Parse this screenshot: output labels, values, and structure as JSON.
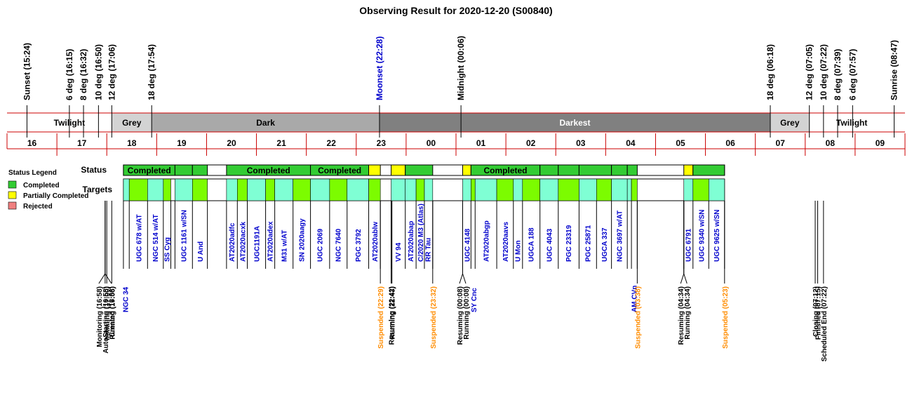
{
  "chart_data": {
    "type": "timeline",
    "title": "Observing Result for 2020-12-20 (S00840)",
    "time_range": [
      "15:00",
      "09:00"
    ],
    "sun_events": [
      {
        "label": "Sunset (15:24)",
        "t": "15:24",
        "color": "#000000"
      },
      {
        "label": "6 deg (16:15)",
        "t": "16:15",
        "color": "#000000"
      },
      {
        "label": "8 deg (16:32)",
        "t": "16:32",
        "color": "#000000"
      },
      {
        "label": "10 deg (16:50)",
        "t": "16:50",
        "color": "#000000"
      },
      {
        "label": "12 deg (17:06)",
        "t": "17:06",
        "color": "#000000"
      },
      {
        "label": "18 deg (17:54)",
        "t": "17:54",
        "color": "#000000"
      },
      {
        "label": "Moonset (22:28)",
        "t": "22:28",
        "color": "#0000cc"
      },
      {
        "label": "Midnight (00:06)",
        "t": "00:06",
        "color": "#000000"
      },
      {
        "label": "18 deg (06:18)",
        "t": "06:18",
        "color": "#000000"
      },
      {
        "label": "12 deg (07:05)",
        "t": "07:05",
        "color": "#000000"
      },
      {
        "label": "10 deg (07:22)",
        "t": "07:22",
        "color": "#000000"
      },
      {
        "label": "8 deg (07:39)",
        "t": "07:39",
        "color": "#000000"
      },
      {
        "label": "6 deg (07:57)",
        "t": "07:57",
        "color": "#000000"
      },
      {
        "label": "Sunrise (08:47)",
        "t": "08:47",
        "color": "#000000"
      }
    ],
    "periods": [
      {
        "label": "Twilight",
        "start": "15:24",
        "end": "17:06",
        "fill": "#ffffff",
        "text": "#000000"
      },
      {
        "label": "Grey",
        "start": "17:06",
        "end": "17:54",
        "fill": "#d3d3d3",
        "text": "#000000"
      },
      {
        "label": "Dark",
        "start": "17:54",
        "end": "22:28",
        "fill": "#a9a9a9",
        "text": "#000000"
      },
      {
        "label": "Darkest",
        "start": "22:28",
        "end": "06:18",
        "fill": "#808080",
        "text": "#ffffff"
      },
      {
        "label": "Grey",
        "start": "06:18",
        "end": "07:05",
        "fill": "#d3d3d3",
        "text": "#000000"
      },
      {
        "label": "Twilight",
        "start": "07:05",
        "end": "08:47",
        "fill": "#ffffff",
        "text": "#000000"
      }
    ],
    "hour_labels": [
      "16",
      "17",
      "18",
      "19",
      "20",
      "21",
      "22",
      "23",
      "00",
      "01",
      "02",
      "03",
      "04",
      "05",
      "06",
      "07",
      "08",
      "09"
    ],
    "row_labels": {
      "status": "Status",
      "targets": "Targets"
    },
    "legend": {
      "title": "Status Legend",
      "items": [
        {
          "label": "Completed",
          "color": "#33cc33"
        },
        {
          "label": "Partially Completed",
          "color": "#ffff00"
        },
        {
          "label": "Rejected",
          "color": "#f08080"
        }
      ]
    },
    "status_bars": [
      {
        "start": "17:20",
        "end": "18:22",
        "status": "Completed",
        "label": "Completed"
      },
      {
        "start": "18:22",
        "end": "18:43",
        "status": "Completed",
        "label": ""
      },
      {
        "start": "18:43",
        "end": "19:01",
        "status": "Completed",
        "label": ""
      },
      {
        "start": "19:24",
        "end": "21:05",
        "status": "Completed",
        "label": "Completed"
      },
      {
        "start": "21:05",
        "end": "22:15",
        "status": "Completed",
        "label": "Completed"
      },
      {
        "start": "22:15",
        "end": "22:29",
        "status": "Partially Completed",
        "label": ""
      },
      {
        "start": "22:42",
        "end": "22:59",
        "status": "Partially Completed",
        "label": ""
      },
      {
        "start": "22:59",
        "end": "23:32",
        "status": "Completed",
        "label": ""
      },
      {
        "start": "00:08",
        "end": "00:18",
        "status": "Partially Completed",
        "label": ""
      },
      {
        "start": "00:18",
        "end": "01:41",
        "status": "Completed",
        "label": "Completed"
      },
      {
        "start": "01:41",
        "end": "02:03",
        "status": "Completed",
        "label": ""
      },
      {
        "start": "02:03",
        "end": "02:28",
        "status": "Completed",
        "label": ""
      },
      {
        "start": "02:28",
        "end": "03:07",
        "status": "Completed",
        "label": ""
      },
      {
        "start": "03:07",
        "end": "03:26",
        "status": "Completed",
        "label": ""
      },
      {
        "start": "03:26",
        "end": "03:38",
        "status": "Completed",
        "label": ""
      },
      {
        "start": "04:34",
        "end": "04:45",
        "status": "Partially Completed",
        "label": ""
      },
      {
        "start": "04:45",
        "end": "05:23",
        "status": "Completed",
        "label": ""
      }
    ],
    "target_bars": [
      {
        "start": "17:20",
        "end": "17:27",
        "fill": "#7fffd4"
      },
      {
        "start": "17:27",
        "end": "17:49",
        "fill": "#7cfc00"
      },
      {
        "start": "17:49",
        "end": "18:08",
        "fill": "#7fffd4"
      },
      {
        "start": "18:08",
        "end": "18:17",
        "fill": "#7cfc00"
      },
      {
        "start": "18:22",
        "end": "18:43",
        "fill": "#7fffd4"
      },
      {
        "start": "18:43",
        "end": "19:01",
        "fill": "#7cfc00"
      },
      {
        "start": "19:24",
        "end": "19:37",
        "fill": "#7fffd4"
      },
      {
        "start": "19:37",
        "end": "19:49",
        "fill": "#7cfc00"
      },
      {
        "start": "19:49",
        "end": "20:11",
        "fill": "#7fffd4"
      },
      {
        "start": "20:11",
        "end": "20:22",
        "fill": "#7cfc00"
      },
      {
        "start": "20:22",
        "end": "20:44",
        "fill": "#7fffd4"
      },
      {
        "start": "20:44",
        "end": "21:05",
        "fill": "#7cfc00"
      },
      {
        "start": "21:05",
        "end": "21:28",
        "fill": "#7fffd4"
      },
      {
        "start": "21:28",
        "end": "21:49",
        "fill": "#7cfc00"
      },
      {
        "start": "21:49",
        "end": "22:15",
        "fill": "#7fffd4"
      },
      {
        "start": "22:15",
        "end": "22:29",
        "fill": "#7cfc00"
      },
      {
        "start": "22:42",
        "end": "22:59",
        "fill": "#7fffd4"
      },
      {
        "start": "22:59",
        "end": "23:12",
        "fill": "#7fffd4"
      },
      {
        "start": "23:12",
        "end": "23:22",
        "fill": "#7cfc00"
      },
      {
        "start": "23:22",
        "end": "23:32",
        "fill": "#7fffd4"
      },
      {
        "start": "00:08",
        "end": "00:18",
        "fill": "#7fffd4"
      },
      {
        "start": "00:18",
        "end": "00:23",
        "fill": "#7cfc00"
      },
      {
        "start": "00:23",
        "end": "00:49",
        "fill": "#7fffd4"
      },
      {
        "start": "00:49",
        "end": "01:09",
        "fill": "#7cfc00"
      },
      {
        "start": "01:09",
        "end": "01:20",
        "fill": "#7fffd4"
      },
      {
        "start": "01:20",
        "end": "01:41",
        "fill": "#7cfc00"
      },
      {
        "start": "01:41",
        "end": "02:03",
        "fill": "#7fffd4"
      },
      {
        "start": "02:03",
        "end": "02:28",
        "fill": "#7cfc00"
      },
      {
        "start": "02:28",
        "end": "02:49",
        "fill": "#7fffd4"
      },
      {
        "start": "02:49",
        "end": "03:07",
        "fill": "#7cfc00"
      },
      {
        "start": "03:07",
        "end": "03:26",
        "fill": "#7fffd4"
      },
      {
        "start": "03:26",
        "end": "03:31",
        "fill": "#7fffd4"
      },
      {
        "start": "03:31",
        "end": "03:38",
        "fill": "#7cfc00"
      },
      {
        "start": "04:34",
        "end": "04:45",
        "fill": "#7fffd4"
      },
      {
        "start": "04:45",
        "end": "05:04",
        "fill": "#7cfc00"
      },
      {
        "start": "05:04",
        "end": "05:23",
        "fill": "#7fffd4"
      }
    ],
    "target_labels": [
      {
        "label": "UGC 678 w/AT",
        "t": "17:38"
      },
      {
        "label": "NGC 514 w/AT",
        "t": "17:58"
      },
      {
        "label": "SS Cyg",
        "t": "18:12"
      },
      {
        "label": "UGC 1161 w/SN",
        "t": "18:32"
      },
      {
        "label": "U And",
        "t": "18:52"
      },
      {
        "label": "AT2020adfc",
        "t": "19:30"
      },
      {
        "label": "AT2020acxk",
        "t": "19:43"
      },
      {
        "label": "UGC1191A",
        "t": "20:00"
      },
      {
        "label": "AT2020adex",
        "t": "20:16"
      },
      {
        "label": "M31 w/AT",
        "t": "20:33"
      },
      {
        "label": "SN 2020aagy",
        "t": "20:54"
      },
      {
        "label": "UGC 2069",
        "t": "21:16"
      },
      {
        "label": "NGC 7640",
        "t": "21:38"
      },
      {
        "label": "PGC 3792",
        "t": "22:02"
      },
      {
        "label": "AT2020ablw",
        "t": "22:22"
      },
      {
        "label": "VV 94",
        "t": "22:50"
      },
      {
        "label": "AT2020abap",
        "t": "23:05"
      },
      {
        "label": "C/2020 M3 (Atlas)",
        "t": "23:17"
      },
      {
        "label": "RR Tau",
        "t": "23:26"
      },
      {
        "label": "UGC 4148",
        "t": "00:13"
      },
      {
        "label": "AT2020abgp",
        "t": "00:36"
      },
      {
        "label": "AT2020aavs",
        "t": "00:59"
      },
      {
        "label": "U Mon",
        "t": "01:14"
      },
      {
        "label": "UGCA 188",
        "t": "01:30"
      },
      {
        "label": "UGC 4043",
        "t": "01:52"
      },
      {
        "label": "PGC 23319",
        "t": "02:15"
      },
      {
        "label": "PGC 25871",
        "t": "02:38"
      },
      {
        "label": "UGCA 337",
        "t": "02:58"
      },
      {
        "label": "NGC 3697 w/AT",
        "t": "03:16"
      },
      {
        "label": "UGC 6791",
        "t": "04:39"
      },
      {
        "label": "UGC 9340 w/SN",
        "t": "04:55"
      },
      {
        "label": "UGC 9625 w/SN",
        "t": "05:13"
      }
    ],
    "extra_target_labels": [
      {
        "label": "NGC 34",
        "t": "17:22"
      },
      {
        "label": "SY Cnc",
        "t": "00:21"
      },
      {
        "label": "AM CVn",
        "t": "03:34"
      }
    ],
    "events": [
      {
        "label": "Monitoring (16:58)",
        "t": "16:58",
        "color": "#000000"
      },
      {
        "label": "AutoStarting (16:58)",
        "t": "16:58",
        "color": "#000000"
      },
      {
        "label": "Created (16:58)",
        "t": "16:58",
        "color": "#000000"
      },
      {
        "label": "Initiating (17:00)",
        "t": "17:00",
        "color": "#000000"
      },
      {
        "label": "Running (17:06)",
        "t": "17:06",
        "color": "#000000"
      },
      {
        "label": "Suspended (22:29)",
        "t": "22:29",
        "color": "#ff8c00"
      },
      {
        "label": "Resuming (22:42)",
        "t": "22:42",
        "color": "#000000"
      },
      {
        "label": "Running (22:43)",
        "t": "22:43",
        "color": "#000000"
      },
      {
        "label": "Suspended (23:32)",
        "t": "23:32",
        "color": "#ff8c00"
      },
      {
        "label": "Resuming (00:08)",
        "t": "00:08",
        "color": "#000000"
      },
      {
        "label": "Running (00:08)",
        "t": "00:08",
        "color": "#000000"
      },
      {
        "label": "Suspended (03:38)",
        "t": "03:38",
        "color": "#ff8c00"
      },
      {
        "label": "Resuming (04:34)",
        "t": "04:34",
        "color": "#000000"
      },
      {
        "label": "Running (04:34)",
        "t": "04:34",
        "color": "#000000"
      },
      {
        "label": "Suspended (05:23)",
        "t": "05:23",
        "color": "#ff8c00"
      },
      {
        "label": "Closing (07:12)",
        "t": "07:12",
        "color": "#000000"
      },
      {
        "label": "Finished (07:15)",
        "t": "07:15",
        "color": "#000000"
      },
      {
        "label": "Scheduled End (07:22)",
        "t": "07:22",
        "color": "#000000"
      }
    ]
  }
}
